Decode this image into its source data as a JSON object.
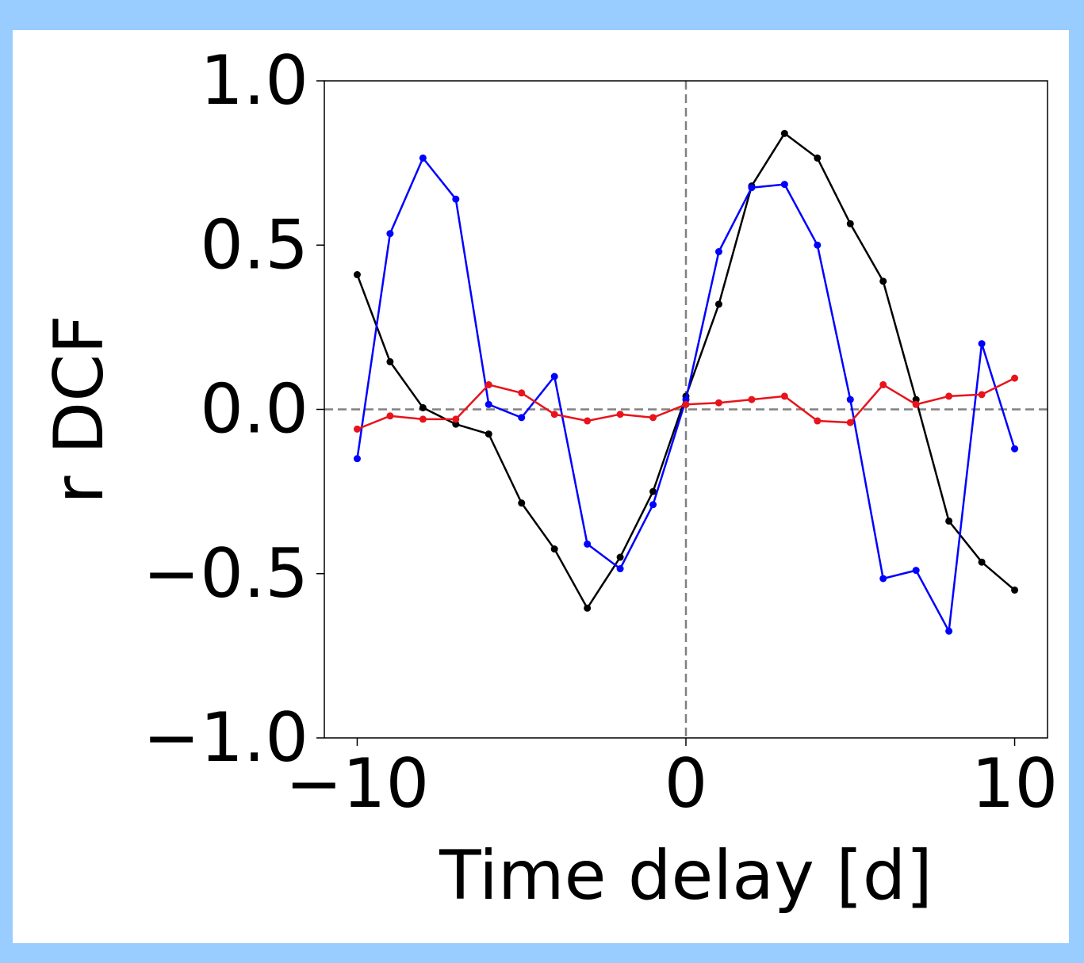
{
  "chart_data": {
    "type": "line",
    "xlabel": "Time delay [d]",
    "ylabel": "r DCF",
    "xlim": [
      -11,
      11
    ],
    "ylim": [
      -1.0,
      1.0
    ],
    "xticks": [
      -10,
      0,
      10
    ],
    "yticks": [
      -1.0,
      -0.5,
      0.0,
      0.5,
      1.0
    ],
    "xtick_labels": [
      "−10",
      "0",
      "10"
    ],
    "ytick_labels": [
      "−1.0",
      "−0.5",
      "0.0",
      "0.5",
      "1.0"
    ],
    "grid": false,
    "reference_lines": [
      {
        "axis": "y",
        "value": 0.0,
        "style": "dashed",
        "color": "#808080"
      },
      {
        "axis": "x",
        "value": 0.0,
        "style": "dashed",
        "color": "#808080"
      }
    ],
    "x": [
      -10,
      -9,
      -8,
      -7,
      -6,
      -5,
      -4,
      -3,
      -2,
      -1,
      0,
      1,
      2,
      3,
      4,
      5,
      6,
      7,
      8,
      9,
      10
    ],
    "series": [
      {
        "color": "#000000",
        "values": [
          0.41,
          0.145,
          0.005,
          -0.045,
          -0.075,
          -0.285,
          -0.425,
          -0.605,
          -0.45,
          -0.25,
          0.04,
          0.32,
          0.68,
          0.84,
          0.765,
          0.565,
          0.39,
          0.03,
          -0.34,
          -0.465,
          -0.55
        ]
      },
      {
        "color": "#0000ff",
        "values": [
          -0.15,
          0.535,
          0.765,
          0.64,
          0.015,
          -0.025,
          0.1,
          -0.41,
          -0.485,
          -0.29,
          0.03,
          0.48,
          0.675,
          0.685,
          0.5,
          0.03,
          -0.515,
          -0.49,
          -0.675,
          0.2,
          -0.12
        ]
      },
      {
        "color": "#e8141b",
        "values": [
          -0.06,
          -0.02,
          -0.03,
          -0.03,
          0.075,
          0.05,
          -0.015,
          -0.035,
          -0.015,
          -0.025,
          0.015,
          0.02,
          0.03,
          0.04,
          -0.035,
          -0.04,
          0.075,
          0.015,
          0.04,
          0.045,
          0.095
        ]
      }
    ]
  }
}
